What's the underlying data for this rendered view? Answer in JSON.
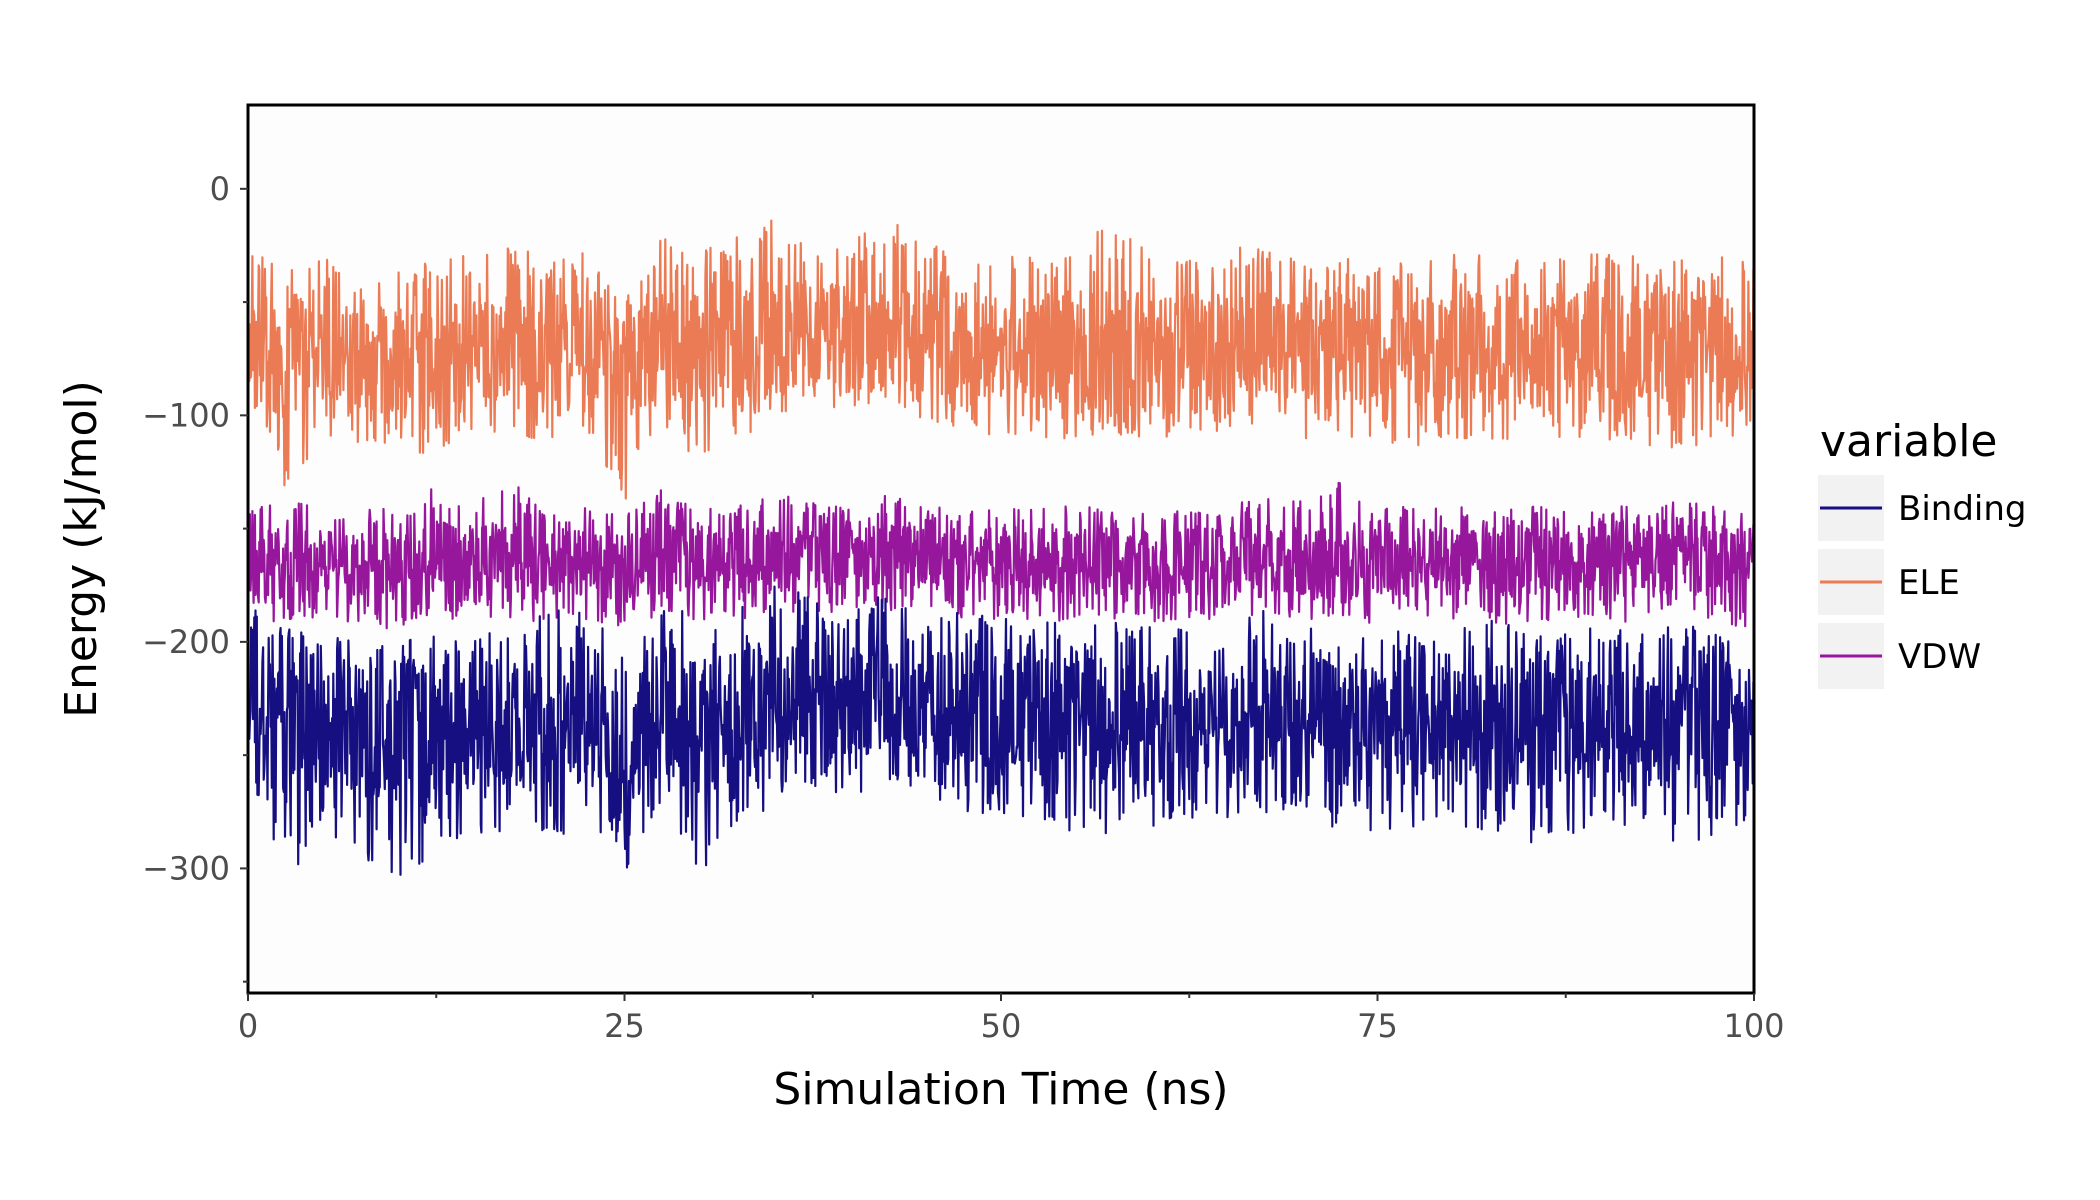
{
  "chart_data": {
    "type": "line",
    "xlabel": "Simulation Time (ns)",
    "ylabel": "Energy (kJ/mol)",
    "xlim": [
      0,
      100
    ],
    "ylim": [
      -355,
      37
    ],
    "x_ticks": [
      0,
      25,
      50,
      75,
      100
    ],
    "x_tick_labels": [
      "0",
      "25",
      "50",
      "75",
      "100"
    ],
    "y_ticks": [
      0,
      -100,
      -200,
      -300
    ],
    "y_tick_labels": [
      "0",
      "−100",
      "−200",
      "−300"
    ],
    "grid": false,
    "legend": {
      "title": "variable",
      "position": "right"
    },
    "series": [
      {
        "name": "Binding",
        "color": "#150f82",
        "x": [
          0,
          2.5,
          5,
          7.5,
          10,
          12.5,
          15,
          17.5,
          20,
          22.5,
          25,
          27.5,
          30,
          32.5,
          35,
          37.5,
          40,
          42.5,
          45,
          47.5,
          50,
          52.5,
          55,
          57.5,
          60,
          62.5,
          65,
          67.5,
          70,
          72.5,
          75,
          77.5,
          80,
          82.5,
          85,
          87.5,
          90,
          92.5,
          95,
          97.5,
          100
        ],
        "mean": [
          -232,
          -238,
          -235,
          -240,
          -242,
          -240,
          -238,
          -236,
          -238,
          -235,
          -255,
          -226,
          -240,
          -232,
          -226,
          -225,
          -228,
          -224,
          -228,
          -230,
          -232,
          -234,
          -235,
          -236,
          -237,
          -236,
          -236,
          -232,
          -234,
          -236,
          -238,
          -237,
          -236,
          -238,
          -238,
          -236,
          -236,
          -237,
          -236,
          -238,
          -240
        ],
        "min": [
          -260,
          -305,
          -290,
          -295,
          -310,
          -290,
          -285,
          -285,
          -290,
          -280,
          -302,
          -270,
          -302,
          -285,
          -270,
          -265,
          -270,
          -262,
          -272,
          -275,
          -280,
          -278,
          -285,
          -288,
          -282,
          -280,
          -278,
          -275,
          -280,
          -285,
          -285,
          -282,
          -280,
          -285,
          -290,
          -288,
          -282,
          -280,
          -290,
          -285,
          -288
        ],
        "max": [
          -185,
          -190,
          -195,
          -200,
          -195,
          -190,
          -195,
          -192,
          -185,
          -185,
          -205,
          -175,
          -195,
          -185,
          -175,
          -180,
          -185,
          -178,
          -190,
          -185,
          -190,
          -188,
          -192,
          -190,
          -192,
          -195,
          -195,
          -185,
          -190,
          -192,
          -195,
          -192,
          -193,
          -190,
          -195,
          -192,
          -190,
          -192,
          -190,
          -195,
          -200
        ]
      },
      {
        "name": "ELE",
        "color": "#eb7b54",
        "x": [
          0,
          2.5,
          5,
          7.5,
          10,
          12.5,
          15,
          17.5,
          20,
          22.5,
          25,
          27.5,
          30,
          32.5,
          35,
          37.5,
          40,
          42.5,
          45,
          47.5,
          50,
          52.5,
          55,
          57.5,
          60,
          62.5,
          65,
          67.5,
          70,
          72.5,
          75,
          77.5,
          80,
          82.5,
          85,
          87.5,
          90,
          92.5,
          95,
          97.5,
          100
        ],
        "mean": [
          -70,
          -72,
          -70,
          -75,
          -76,
          -74,
          -72,
          -70,
          -72,
          -70,
          -84,
          -68,
          -70,
          -68,
          -66,
          -64,
          -66,
          -63,
          -66,
          -68,
          -70,
          -70,
          -70,
          -72,
          -72,
          -70,
          -70,
          -68,
          -68,
          -70,
          -72,
          -71,
          -70,
          -70,
          -72,
          -70,
          -70,
          -72,
          -70,
          -72,
          -75
        ],
        "min": [
          -90,
          -135,
          -110,
          -112,
          -120,
          -115,
          -110,
          -108,
          -112,
          -108,
          -140,
          -105,
          -122,
          -112,
          -100,
          -98,
          -100,
          -100,
          -103,
          -108,
          -110,
          -110,
          -112,
          -110,
          -112,
          -108,
          -108,
          -105,
          -110,
          -112,
          -112,
          -114,
          -110,
          -112,
          -114,
          -110,
          -112,
          -115,
          -115,
          -112,
          -110
        ],
        "max": [
          -20,
          -35,
          -30,
          -40,
          -35,
          -32,
          -28,
          -25,
          -30,
          -28,
          -50,
          -20,
          -25,
          -20,
          -12,
          -20,
          -18,
          -12,
          -24,
          -28,
          -30,
          -28,
          -25,
          -12,
          -30,
          -30,
          -28,
          -22,
          -30,
          -30,
          -32,
          -30,
          -28,
          -30,
          -30,
          -28,
          -28,
          -30,
          -30,
          -28,
          -32
        ]
      },
      {
        "name": "VDW",
        "color": "#96179c",
        "x": [
          0,
          2.5,
          5,
          7.5,
          10,
          12.5,
          15,
          17.5,
          20,
          22.5,
          25,
          27.5,
          30,
          32.5,
          35,
          37.5,
          40,
          42.5,
          45,
          47.5,
          50,
          52.5,
          55,
          57.5,
          60,
          62.5,
          65,
          67.5,
          70,
          72.5,
          75,
          77.5,
          80,
          82.5,
          85,
          87.5,
          90,
          92.5,
          95,
          97.5,
          100
        ],
        "mean": [
          -165,
          -166,
          -165,
          -166,
          -167,
          -166,
          -165,
          -164,
          -165,
          -164,
          -168,
          -162,
          -164,
          -164,
          -162,
          -162,
          -163,
          -161,
          -162,
          -163,
          -164,
          -164,
          -164,
          -165,
          -165,
          -164,
          -164,
          -163,
          -164,
          -164,
          -165,
          -165,
          -164,
          -165,
          -165,
          -164,
          -164,
          -165,
          -164,
          -165,
          -166
        ],
        "min": [
          -190,
          -192,
          -190,
          -192,
          -195,
          -192,
          -190,
          -190,
          -192,
          -190,
          -195,
          -188,
          -192,
          -190,
          -188,
          -186,
          -188,
          -186,
          -188,
          -190,
          -190,
          -190,
          -192,
          -190,
          -192,
          -190,
          -190,
          -188,
          -190,
          -190,
          -192,
          -190,
          -190,
          -192,
          -192,
          -190,
          -190,
          -192,
          -190,
          -192,
          -195
        ],
        "max": [
          -140,
          -138,
          -140,
          -142,
          -140,
          -128,
          -135,
          -128,
          -140,
          -140,
          -145,
          -130,
          -140,
          -138,
          -132,
          -138,
          -140,
          -135,
          -140,
          -138,
          -140,
          -140,
          -140,
          -140,
          -142,
          -140,
          -140,
          -135,
          -138,
          -128,
          -140,
          -140,
          -140,
          -142,
          -140,
          -138,
          -140,
          -140,
          -138,
          -140,
          -145
        ]
      }
    ]
  }
}
